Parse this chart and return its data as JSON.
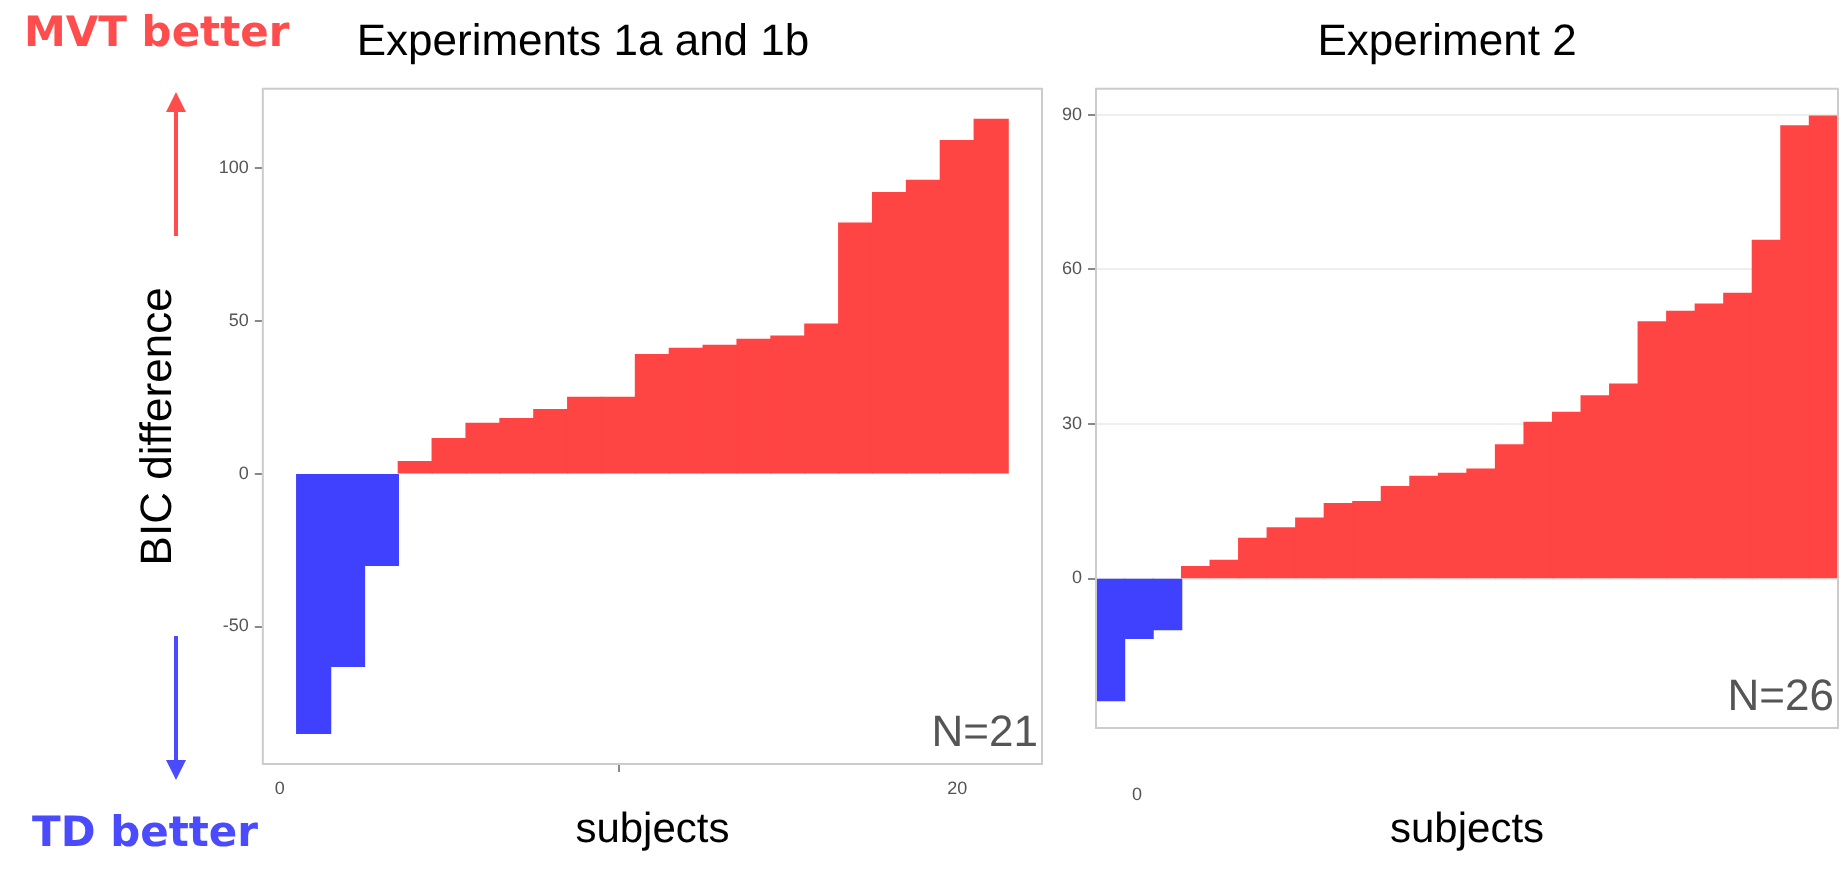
{
  "chart_data": [
    {
      "type": "bar",
      "title": "Experiments 1a and 1b",
      "xlabel": "subjects",
      "ylabel": "BIC difference",
      "x": [
        1,
        2,
        3,
        4,
        5,
        6,
        7,
        8,
        9,
        10,
        11,
        12,
        13,
        14,
        15,
        16,
        17,
        18,
        19,
        20,
        21
      ],
      "values": [
        -85,
        -63,
        -30,
        4,
        11.5,
        16.5,
        18,
        21,
        25,
        25,
        39,
        41,
        42,
        44,
        45,
        49,
        82,
        92,
        96,
        109,
        116
      ],
      "colors": [
        "#4040ff",
        "#4040ff",
        "#4040ff",
        "#ff4444",
        "#ff4444",
        "#ff4444",
        "#ff4444",
        "#ff4444",
        "#ff4444",
        "#ff4444",
        "#ff4444",
        "#ff4444",
        "#ff4444",
        "#ff4444",
        "#ff4444",
        "#ff4444",
        "#ff4444",
        "#ff4444",
        "#ff4444",
        "#ff4444",
        "#ff4444"
      ],
      "xlim": [
        -0.5,
        22.5
      ],
      "xticks": [
        0,
        20
      ],
      "ylim": [
        -95,
        126
      ],
      "yticks": [
        -50,
        0,
        50,
        100
      ],
      "grid": false,
      "annotations": [
        "MVT better",
        "TD better",
        "N=21"
      ]
    },
    {
      "type": "bar",
      "title": "Experiment 2",
      "xlabel": "subjects",
      "categories": [
        null,
        null,
        null,
        null,
        null,
        null,
        null,
        null,
        null,
        null,
        null,
        null,
        null,
        null,
        null,
        null,
        null,
        null,
        null,
        null,
        null,
        null,
        null,
        null,
        null,
        null
      ],
      "values": [
        -23.7,
        -11.6,
        -9.9,
        2.3,
        3.5,
        7.8,
        9.8,
        11.7,
        14.5,
        14.9,
        17.8,
        19.8,
        20.4,
        21.2,
        25.9,
        30.3,
        32.2,
        35.4,
        37.7,
        49.8,
        51.8,
        53.2,
        55.3,
        65.6,
        87.8,
        89.7
      ],
      "colors": [
        "#4040ff",
        "#4040ff",
        "#4040ff",
        "#ff4444",
        "#ff4444",
        "#ff4444",
        "#ff4444",
        "#ff4444",
        "#ff4444",
        "#ff4444",
        "#ff4444",
        "#ff4444",
        "#ff4444",
        "#ff4444",
        "#ff4444",
        "#ff4444",
        "#ff4444",
        "#ff4444",
        "#ff4444",
        "#ff4444",
        "#ff4444",
        "#ff4444",
        "#ff4444",
        "#ff4444",
        "#ff4444",
        "#ff4444"
      ],
      "ylim": [
        -29,
        95
      ],
      "yticks": [
        0,
        30,
        60,
        90
      ],
      "grid": "y",
      "annotations": [
        "0",
        "N=26"
      ]
    }
  ]
}
